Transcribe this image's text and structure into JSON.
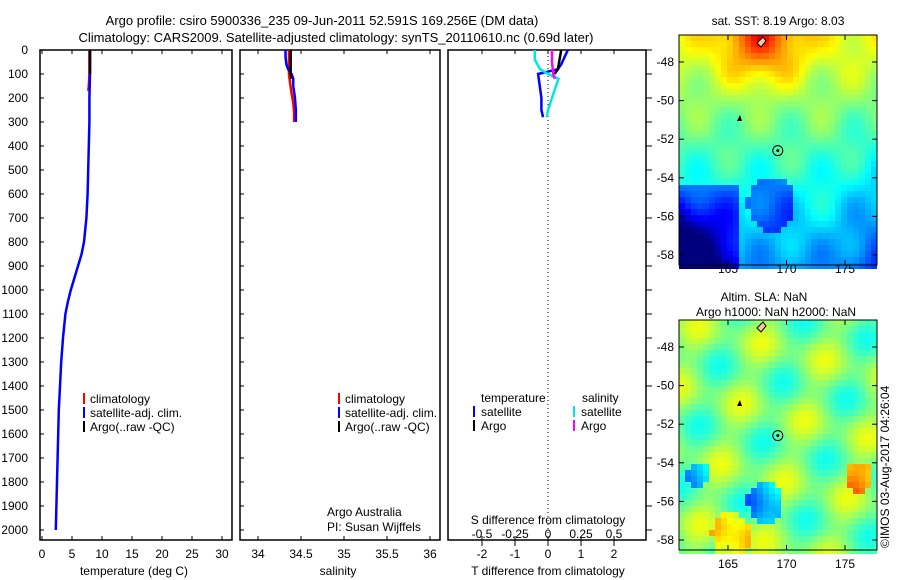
{
  "title_line1": "Argo profile: csiro 5900336_235 09-Jun-2011 52.591S 169.256E (DM data)",
  "title_line2": "Climatology: CARS2009. Satellite-adjusted climatology: synTS_20110610.nc (0.69d later)",
  "colors": {
    "climatology": "#ff0000",
    "satellite": "#0000ff",
    "argo": "#000000",
    "sal_satellite": "#00e5e5",
    "sal_argo": "#ff00ff"
  },
  "chart_data": [
    {
      "type": "line",
      "name": "temperature-profile",
      "xlabel": "temperature (deg C)",
      "ylabel": "",
      "xlim": [
        -1,
        31
      ],
      "ylim": [
        2000,
        0
      ],
      "xticks": [
        "0",
        "5",
        "10",
        "15",
        "20",
        "25",
        "30"
      ],
      "yticks": [
        "0",
        "100",
        "200",
        "300",
        "400",
        "500",
        "600",
        "700",
        "800",
        "900",
        "1000",
        "1100",
        "1200",
        "1300",
        "1400",
        "1500",
        "1600",
        "1700",
        "1800",
        "1900",
        "2000"
      ],
      "legend": [
        "climatology",
        "satellite-adj. clim.",
        "Argo(..raw -QC)"
      ],
      "series": [
        {
          "name": "climatology",
          "depth": [
            0,
            100,
            150,
            170
          ],
          "values": [
            7.9,
            7.9,
            7.8,
            7.7
          ]
        },
        {
          "name": "satellite-adj. clim.",
          "depth": [
            0,
            100,
            200,
            300,
            400,
            500,
            600,
            700,
            800,
            850,
            900,
            950,
            1000,
            1050,
            1100,
            1200,
            1300,
            1400,
            1500,
            1600,
            1700,
            1800,
            1900,
            2000
          ],
          "values": [
            8.0,
            8.0,
            7.9,
            7.9,
            7.8,
            7.7,
            7.6,
            7.4,
            7.0,
            6.6,
            6.0,
            5.4,
            4.8,
            4.3,
            3.9,
            3.5,
            3.2,
            3.0,
            2.8,
            2.7,
            2.6,
            2.5,
            2.4,
            2.3
          ]
        },
        {
          "name": "Argo(..raw -QC)",
          "depth": [
            0,
            100
          ],
          "values": [
            8.0,
            8.0
          ]
        }
      ]
    },
    {
      "type": "line",
      "name": "salinity-profile",
      "xlabel": "salinity",
      "xlim": [
        33.8,
        36.1
      ],
      "ylim": [
        2000,
        0
      ],
      "xticks": [
        "34",
        "34.5",
        "35",
        "35.5",
        "36"
      ],
      "legend": [
        "climatology",
        "satellite-adj. clim.",
        "Argo(..raw -QC)"
      ],
      "annotation": [
        "Argo Australia",
        "PI: Susan Wijffels"
      ],
      "series": [
        {
          "name": "climatology",
          "depth": [
            0,
            50,
            100,
            130,
            180,
            220,
            260,
            300
          ],
          "values": [
            34.36,
            34.36,
            34.36,
            34.37,
            34.39,
            34.41,
            34.42,
            34.42
          ]
        },
        {
          "name": "satellite-adj. clim.",
          "depth": [
            0,
            30,
            60,
            80,
            100,
            120,
            150,
            200,
            250,
            300
          ],
          "values": [
            34.32,
            34.32,
            34.33,
            34.35,
            34.39,
            34.41,
            34.41,
            34.43,
            34.44,
            34.44
          ]
        },
        {
          "name": "Argo(..raw -QC)",
          "depth": [
            0,
            50,
            100,
            120
          ],
          "values": [
            34.38,
            34.38,
            34.38,
            34.39
          ]
        }
      ]
    },
    {
      "type": "line",
      "name": "difference-profile",
      "xlabel": "T difference from climatology",
      "x2label": "S difference from climatology",
      "xlim": [
        -3,
        3
      ],
      "ylim": [
        2000,
        0
      ],
      "xticks": [
        "-2",
        "-1",
        "0",
        "1",
        "2"
      ],
      "x2ticks": [
        "-0.5",
        "-0.25",
        "0",
        "0.25",
        "0.5"
      ],
      "legend_headers": [
        "temperature",
        "salinity"
      ],
      "legend": [
        "satellite",
        "Argo",
        "satellite",
        "Argo"
      ],
      "series": [
        {
          "name": "T satellite",
          "axis": "T",
          "depth": [
            0,
            30,
            60,
            80,
            100,
            150,
            200,
            250,
            280
          ],
          "values": [
            0.6,
            0.5,
            0.4,
            0.3,
            -0.3,
            -0.25,
            -0.2,
            -0.2,
            -0.15
          ]
        },
        {
          "name": "T Argo",
          "axis": "T",
          "depth": [
            0,
            40,
            80,
            100
          ],
          "values": [
            0.4,
            0.35,
            0.3,
            0.2
          ]
        },
        {
          "name": "S satellite",
          "axis": "S",
          "depth": [
            0,
            40,
            80,
            100,
            120,
            150,
            200,
            250,
            280
          ],
          "values": [
            -0.1,
            -0.1,
            -0.06,
            0.0,
            0.08,
            0.06,
            0.03,
            0.0,
            -0.01
          ]
        },
        {
          "name": "S Argo",
          "axis": "S",
          "depth": [
            0,
            50,
            100,
            120
          ],
          "values": [
            0.03,
            0.03,
            0.04,
            0.05
          ]
        }
      ]
    }
  ],
  "maps": {
    "sst_title": "sat. SST: 8.19 Argo: 8.03",
    "sla_title1": "Altim. SLA: NaN",
    "sla_title2": "Argo h1000: NaN h2000: NaN",
    "lat_ticks": [
      "-48",
      "-50",
      "-52",
      "-54",
      "-56",
      "-58"
    ],
    "lon_ticks": [
      "165",
      "170",
      "175"
    ],
    "float_lon": 169.256,
    "float_lat": -52.591
  },
  "stamp": "©IMOS 03-Aug-2017 04:26:04"
}
